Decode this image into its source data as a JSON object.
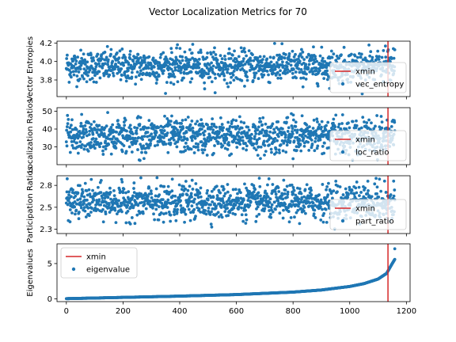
{
  "figure_title": "Vector Localization Metrics for 70",
  "colors": {
    "points": "#1f77b4",
    "xmin_line": "#d62728",
    "axes": "#000000"
  },
  "chart_data": [
    {
      "type": "scatter",
      "ylabel": "Vector Entropies",
      "ylim": [
        3.62,
        4.22
      ],
      "yticks": [
        3.8,
        4.0,
        4.2
      ],
      "xlim": [
        -33,
        1213
      ],
      "series": [
        {
          "name": "vec_entropy",
          "n": 1160,
          "x_start": 0,
          "x_step": 1,
          "trend": "flat",
          "center": 3.95,
          "spread": 0.085,
          "min": 3.64,
          "max": 4.2
        }
      ],
      "xmin": 1135,
      "legend": {
        "entries": [
          "xmin",
          "vec_entropy"
        ],
        "position": "lower right"
      }
    },
    {
      "type": "scatter",
      "ylabel": "Localization Ratios",
      "ylim": [
        20,
        52
      ],
      "yticks": [
        30,
        40,
        50
      ],
      "xlim": [
        -33,
        1213
      ],
      "series": [
        {
          "name": "loc_ratio",
          "n": 1160,
          "x_start": 0,
          "x_step": 1,
          "trend": "flat",
          "center": 36,
          "spread": 4.8,
          "min": 22,
          "max": 51
        }
      ],
      "xmin": 1135,
      "legend": {
        "entries": [
          "xmin",
          "loc_ratio"
        ],
        "position": "lower right"
      }
    },
    {
      "type": "scatter",
      "ylabel": "Participation Ratios",
      "ylim": [
        2.2,
        2.86
      ],
      "yticks": [
        2.25,
        2.5,
        2.75
      ],
      "xlim": [
        -33,
        1213
      ],
      "series": [
        {
          "name": "part_ratio",
          "n": 1160,
          "x_start": 0,
          "x_step": 1,
          "trend": "flat",
          "center": 2.56,
          "spread": 0.095,
          "min": 2.25,
          "max": 2.84
        }
      ],
      "xmin": 1135,
      "legend": {
        "entries": [
          "xmin",
          "part_ratio"
        ],
        "position": "lower right"
      }
    },
    {
      "type": "scatter",
      "ylabel": "Eigenvalues",
      "ylim": [
        -0.4,
        7.8
      ],
      "yticks": [
        0,
        5
      ],
      "xlim": [
        -33,
        1213
      ],
      "xticks": [
        0,
        200,
        400,
        600,
        800,
        1000,
        1200
      ],
      "series": [
        {
          "name": "eigenvalue",
          "n": 1160,
          "x_start": 0,
          "x_step": 1,
          "trend": "sorted-increasing",
          "curve": [
            [
              0,
              0.02
            ],
            [
              200,
              0.2
            ],
            [
              400,
              0.38
            ],
            [
              600,
              0.6
            ],
            [
              800,
              0.95
            ],
            [
              900,
              1.25
            ],
            [
              1000,
              1.75
            ],
            [
              1050,
              2.15
            ],
            [
              1100,
              2.8
            ],
            [
              1130,
              3.6
            ],
            [
              1150,
              5.0
            ],
            [
              1159,
              5.6
            ]
          ],
          "outlier": [
            1159,
            7.1
          ]
        }
      ],
      "xmin": 1135,
      "legend": {
        "entries": [
          "xmin",
          "eigenvalue"
        ],
        "position": "upper left"
      }
    }
  ]
}
